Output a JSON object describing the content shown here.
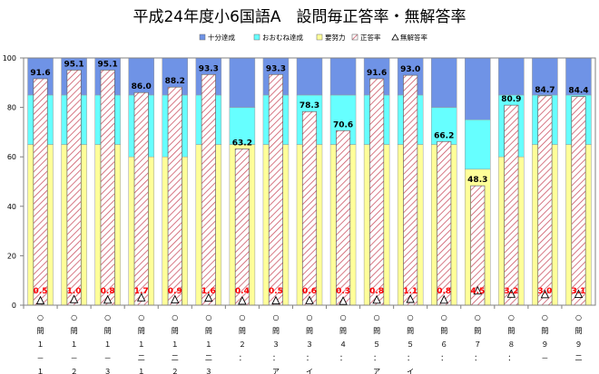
{
  "chart_data": {
    "type": "bar",
    "title": "平成24年度小6国語A　設問毎正答率・無解答率",
    "legend": [
      {
        "key": "full",
        "label": "十分達成",
        "color": "#6f93e6"
      },
      {
        "key": "mostly",
        "label": "おおむね達成",
        "color": "#66ffff"
      },
      {
        "key": "effort",
        "label": "要努力",
        "color": "#ffff99"
      },
      {
        "key": "correct",
        "label": "正答率",
        "color": "#cc6677"
      },
      {
        "key": "no_answer",
        "label": "無解答率"
      }
    ],
    "legend_position": "top-right",
    "categories": [
      [
        "○",
        "問",
        "１",
        "－",
        "１"
      ],
      [
        "○",
        "問",
        "１",
        "－",
        "２"
      ],
      [
        "○",
        "問",
        "１",
        "－",
        "３"
      ],
      [
        "○",
        "問",
        "１",
        "二",
        "１"
      ],
      [
        "○",
        "問",
        "１",
        "二",
        "２"
      ],
      [
        "○",
        "問",
        "１",
        "二",
        "３"
      ],
      [
        "○",
        "問",
        "２",
        "："
      ],
      [
        "○",
        "問",
        "３",
        "：",
        "ア"
      ],
      [
        "○",
        "問",
        "３",
        "：",
        "イ"
      ],
      [
        "○",
        "問",
        "４",
        "："
      ],
      [
        "○",
        "問",
        "５",
        "：",
        "ア"
      ],
      [
        "○",
        "問",
        "５",
        "：",
        "イ"
      ],
      [
        "○",
        "問",
        "６",
        "："
      ],
      [
        "○",
        "問",
        "７",
        "："
      ],
      [
        "○",
        "問",
        "８",
        "："
      ],
      [
        "○",
        "問",
        "９",
        "－"
      ],
      [
        "○",
        "問",
        "９",
        "二"
      ]
    ],
    "ylim": [
      0,
      100
    ],
    "yticks": [
      0,
      20,
      40,
      60,
      80,
      100
    ],
    "grid": false,
    "bands": {
      "effort_upper": [
        65,
        65,
        65,
        60,
        60,
        65,
        65,
        65,
        65,
        65,
        65,
        65,
        65,
        55,
        60,
        65,
        65
      ],
      "mostly_upper": [
        85,
        85,
        85,
        85,
        85,
        85,
        80,
        85,
        85,
        85,
        85,
        85,
        80,
        75,
        85,
        85,
        85
      ]
    },
    "series": [
      {
        "name": "正答率",
        "key": "correct",
        "values": [
          91.6,
          95.1,
          95.1,
          86.0,
          88.2,
          93.3,
          63.2,
          93.3,
          78.3,
          70.6,
          91.6,
          93.0,
          66.2,
          48.3,
          80.9,
          84.7,
          84.4
        ]
      },
      {
        "name": "無解答率",
        "key": "no_answer",
        "values": [
          0.5,
          1.0,
          0.8,
          1.7,
          0.9,
          1.6,
          0.4,
          0.5,
          0.6,
          0.3,
          0.8,
          1.1,
          0.8,
          4.5,
          3.2,
          3.0,
          3.1
        ]
      }
    ]
  }
}
